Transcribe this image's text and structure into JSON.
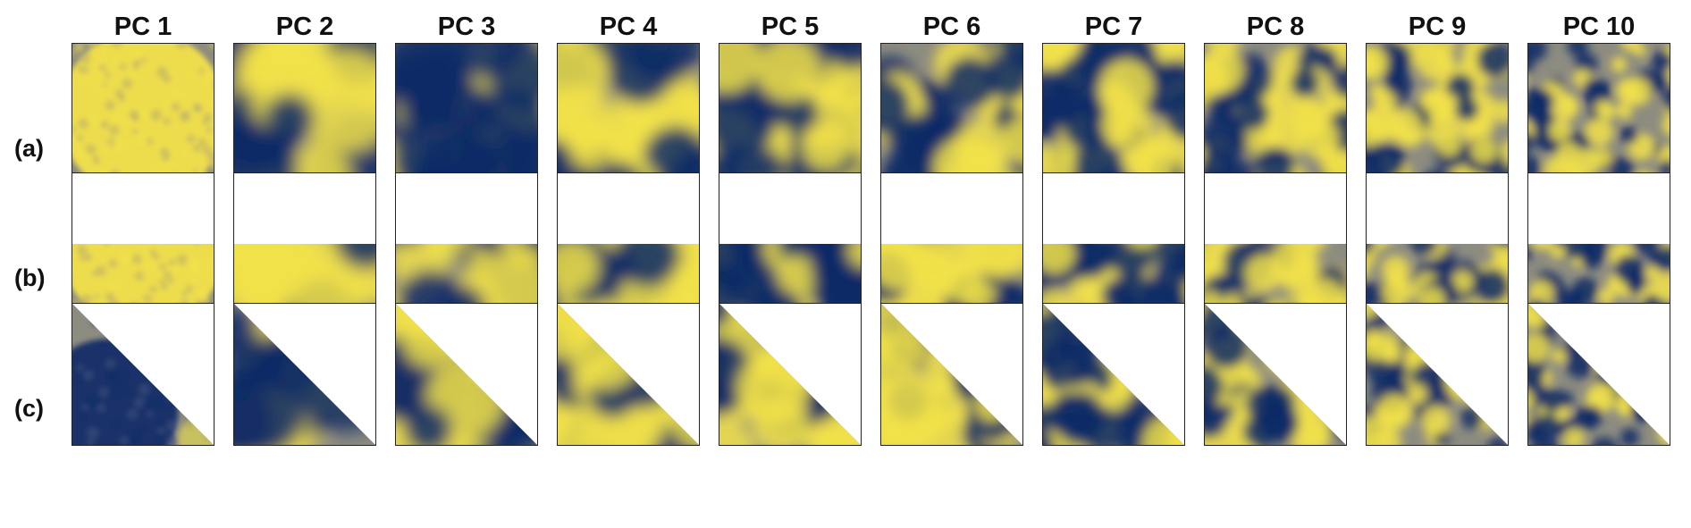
{
  "figure": {
    "columns": [
      "PC 1",
      "PC 2",
      "PC 3",
      "PC 4",
      "PC 5",
      "PC 6",
      "PC 7",
      "PC 8",
      "PC 9",
      "PC 10"
    ],
    "rows": [
      {
        "label": "(a)",
        "mask": "full"
      },
      {
        "label": "(b)",
        "mask": "bottom-half"
      },
      {
        "label": "(c)",
        "mask": "lower-left-triangle"
      }
    ],
    "colors": {
      "low": "#0d2a66",
      "high": "#f2e24a",
      "mid": "#8d8c80",
      "frame": "#222222",
      "background": "#ffffff"
    }
  }
}
